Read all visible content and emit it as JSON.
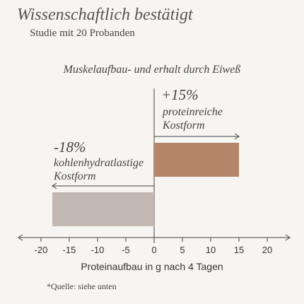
{
  "chart_data": {
    "type": "hbar",
    "title": "Wissenschaftlich bestätigt",
    "subtitle": "Studie mit 20 Probanden",
    "chart_title": "Muskelaufbau- und erhalt durch Eiweß",
    "categories": [
      "proteinreiche Kostform",
      "kohlenhydratlastige Kostform"
    ],
    "values": [
      15,
      -18
    ],
    "value_labels": [
      "+15%",
      "-18%"
    ],
    "colors": [
      "#b5866a",
      "#c4b8b3"
    ],
    "xlim": [
      -24,
      24
    ],
    "xticks": [
      -20,
      -15,
      -10,
      -5,
      0,
      5,
      10,
      15,
      20
    ],
    "xlabel": "Proteinaufbau in g nach 4 Tagen",
    "footnote": "*Quelle: siehe unten"
  }
}
